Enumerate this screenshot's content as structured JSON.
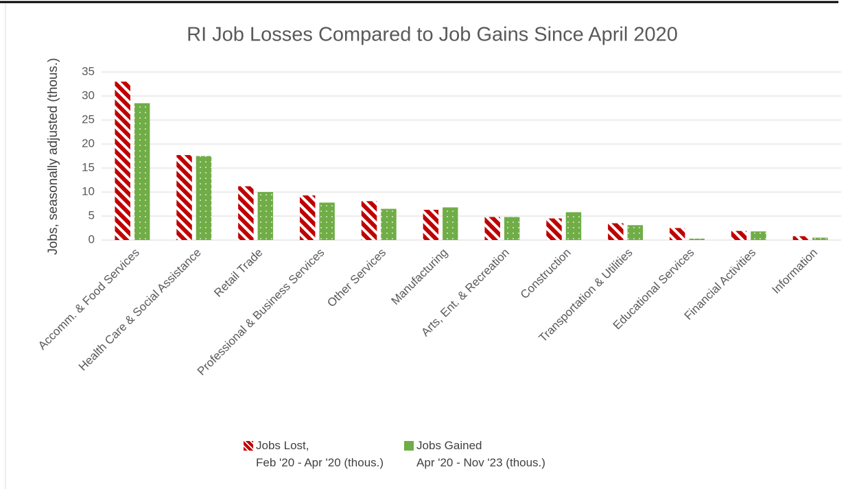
{
  "chart_data": {
    "type": "bar",
    "title": "RI Job Losses Compared to Job Gains Since April 2020",
    "y_label": "Jobs, seasonally adjusted (thous.)",
    "categories": [
      "Accomm. & Food Services",
      "Health Care & Social Assistance",
      "Retail Trade",
      "Professional & Business Services",
      "Other Services",
      "Manufacturing",
      "Arts, Ent. & Recreation",
      "Construction",
      "Transportation & Utilities",
      "Educational Services",
      "Financial Activities",
      "Information"
    ],
    "series": [
      {
        "name": "Jobs Lost,\nFeb '20 - Apr '20 (thous.)",
        "color": "#c00000",
        "values": [
          33,
          17.7,
          11.2,
          9.3,
          8.1,
          6.3,
          4.8,
          4.5,
          3.5,
          2.5,
          1.9,
          0.8
        ]
      },
      {
        "name": "Jobs Gained\nApr '20 - Nov '23 (thous.)",
        "color": "#70ad47",
        "values": [
          28.5,
          17.5,
          10,
          7.8,
          6.5,
          6.8,
          4.8,
          5.8,
          3.1,
          0.3,
          1.8,
          0.5
        ]
      }
    ],
    "ylim": [
      0,
      35
    ],
    "yticks": [
      0,
      5,
      10,
      15,
      20,
      25,
      30,
      35
    ],
    "grid": true
  }
}
